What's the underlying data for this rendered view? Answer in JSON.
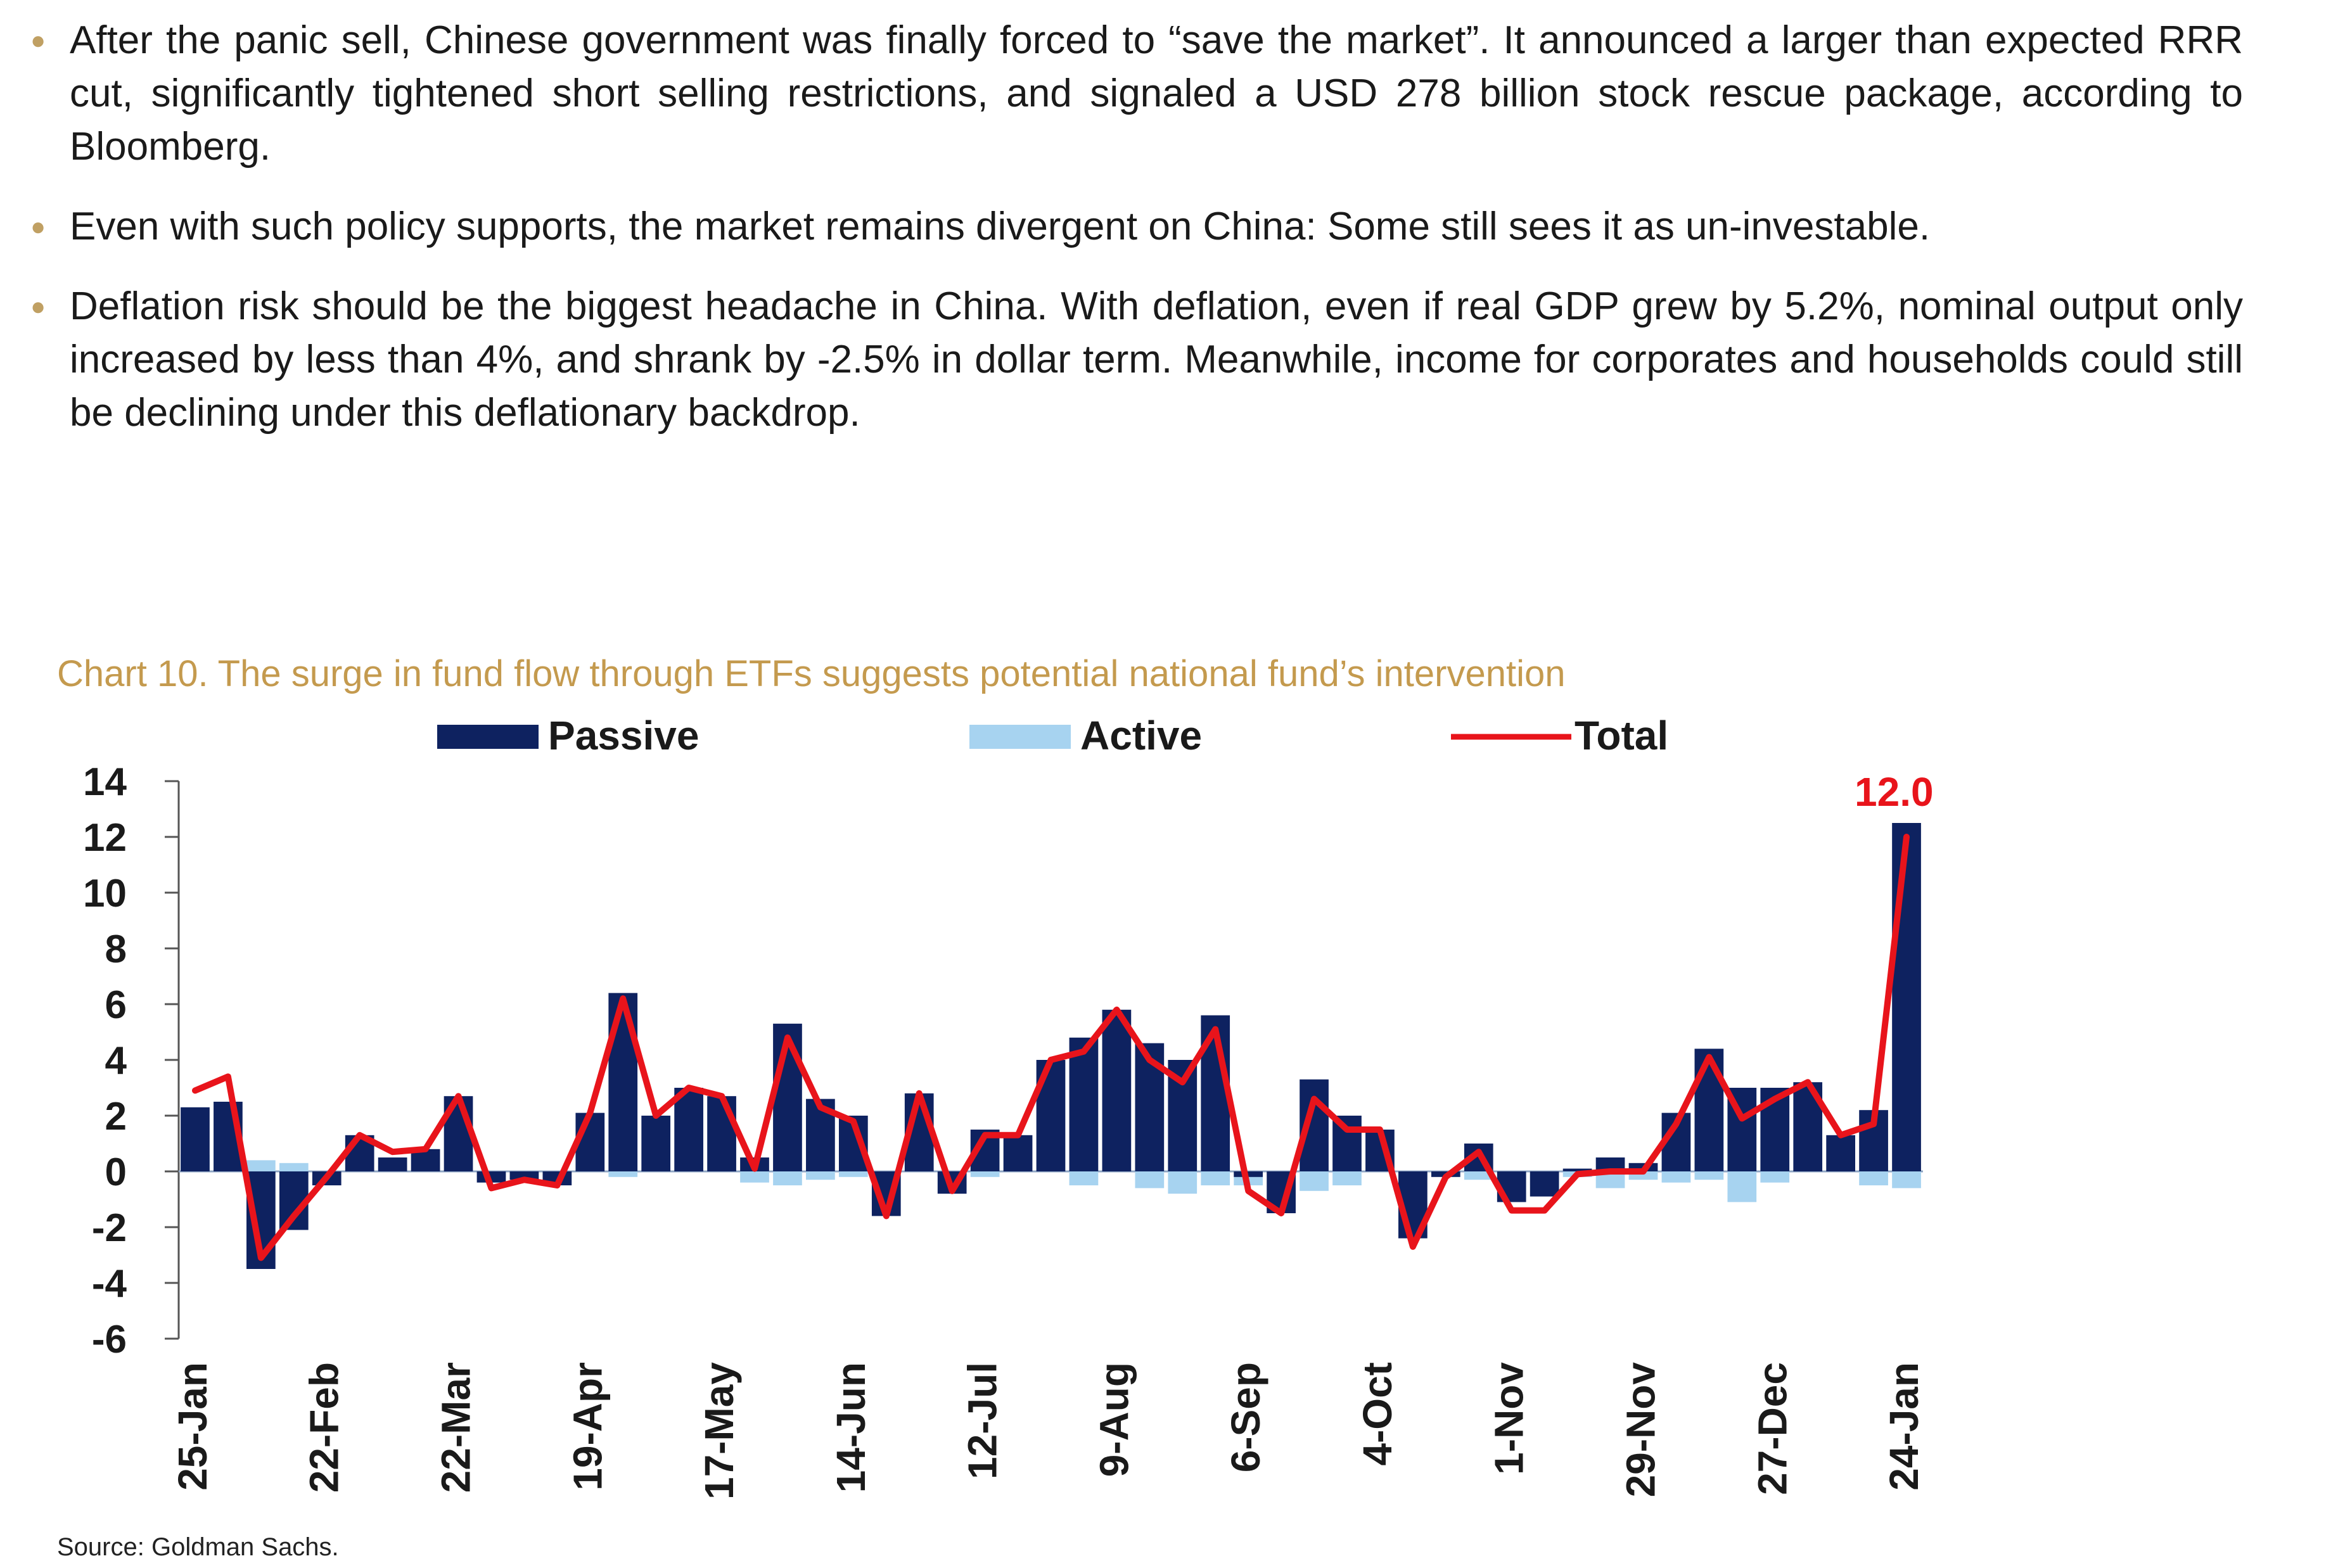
{
  "bullets": [
    "After the panic sell, Chinese government was finally forced to “save the market”. It announced a larger than expected RRR cut, significantly tightened short selling restrictions, and signaled a USD 278 billion stock rescue package, according to Bloomberg.",
    "Even with such policy supports, the market remains divergent on China: Some still sees it as un-investable.",
    "Deflation risk should be the biggest headache in China. With deflation, even if real GDP grew by 5.2%, nominal output only increased by less than 4%, and shrank by -2.5% in dollar term. Meanwhile, income for corporates and households could still be declining under this deflationary backdrop."
  ],
  "chart_title": "Chart 10. The surge in fund flow through ETFs suggests potential national fund’s intervention",
  "source": "Source: Goldman Sachs.",
  "colors": {
    "passive": "#0E2260",
    "active": "#A7D3F0",
    "total": "#E8141B",
    "accent": "#C49A4E"
  },
  "chart_data": {
    "type": "bar",
    "title": "Chart 10. The surge in fund flow through ETFs suggests potential national fund’s intervention",
    "xlabel": "",
    "ylabel": "",
    "ylim": [
      -6,
      14
    ],
    "yticks": [
      14,
      12,
      10,
      8,
      6,
      4,
      2,
      0,
      -2,
      -4,
      -6
    ],
    "tick_labels": [
      "25-Jan",
      "22-Feb",
      "22-Mar",
      "19-Apr",
      "17-May",
      "14-Jun",
      "12-Jul",
      "9-Aug",
      "6-Sep",
      "4-Oct",
      "1-Nov",
      "29-Nov",
      "27-Dec",
      "24-Jan"
    ],
    "tick_every": 4,
    "legend": {
      "position": "top",
      "entries": [
        "Passive",
        "Active",
        "Total"
      ]
    },
    "annotation": {
      "text": "12.0",
      "index": 52
    },
    "series": [
      {
        "name": "Passive",
        "kind": "bar",
        "values": [
          2.3,
          2.5,
          -3.5,
          -2.1,
          -0.5,
          1.3,
          0.5,
          0.8,
          2.7,
          -0.4,
          -0.3,
          -0.5,
          2.1,
          6.4,
          2.0,
          3.0,
          2.7,
          0.5,
          5.3,
          2.6,
          2.0,
          -1.6,
          2.8,
          -0.8,
          1.5,
          1.3,
          4.0,
          4.8,
          5.8,
          4.6,
          4.0,
          5.6,
          -0.2,
          -1.5,
          3.3,
          2.0,
          1.5,
          -2.4,
          -0.2,
          1.0,
          -1.1,
          -0.9,
          0.1,
          0.5,
          0.3,
          2.1,
          4.4,
          3.0,
          3.0,
          3.2,
          1.3,
          2.2,
          12.5
        ]
      },
      {
        "name": "Active",
        "kind": "bar",
        "values": [
          0.6,
          0.9,
          0.4,
          0.3,
          0.0,
          0.0,
          0.2,
          0.0,
          0.0,
          -0.2,
          0.0,
          0.0,
          0.0,
          -0.2,
          0.0,
          0.0,
          0.0,
          -0.4,
          -0.5,
          -0.3,
          -0.2,
          0.0,
          0.0,
          -0.2,
          -0.2,
          0.0,
          0.0,
          -0.5,
          0.0,
          -0.6,
          -0.8,
          -0.5,
          -0.5,
          0.0,
          -0.7,
          -0.5,
          0.0,
          -0.3,
          0.0,
          -0.3,
          -0.3,
          -0.5,
          -0.2,
          -0.6,
          -0.3,
          -0.4,
          -0.3,
          -1.1,
          -0.4,
          0.0,
          0.0,
          -0.5,
          -0.6
        ]
      },
      {
        "name": "Total",
        "kind": "line",
        "values": [
          2.9,
          3.4,
          -3.1,
          -1.6,
          -0.2,
          1.3,
          0.7,
          0.8,
          2.7,
          -0.6,
          -0.3,
          -0.5,
          2.1,
          6.2,
          2.0,
          3.0,
          2.7,
          0.1,
          4.8,
          2.3,
          1.8,
          -1.6,
          2.8,
          -0.7,
          1.3,
          1.3,
          4.0,
          4.3,
          5.8,
          4.0,
          3.2,
          5.1,
          -0.7,
          -1.5,
          2.6,
          1.5,
          1.5,
          -2.7,
          -0.2,
          0.7,
          -1.4,
          -1.4,
          -0.1,
          0.0,
          0.0,
          1.7,
          4.1,
          1.9,
          2.6,
          3.2,
          1.3,
          1.7,
          12.0
        ]
      }
    ]
  }
}
